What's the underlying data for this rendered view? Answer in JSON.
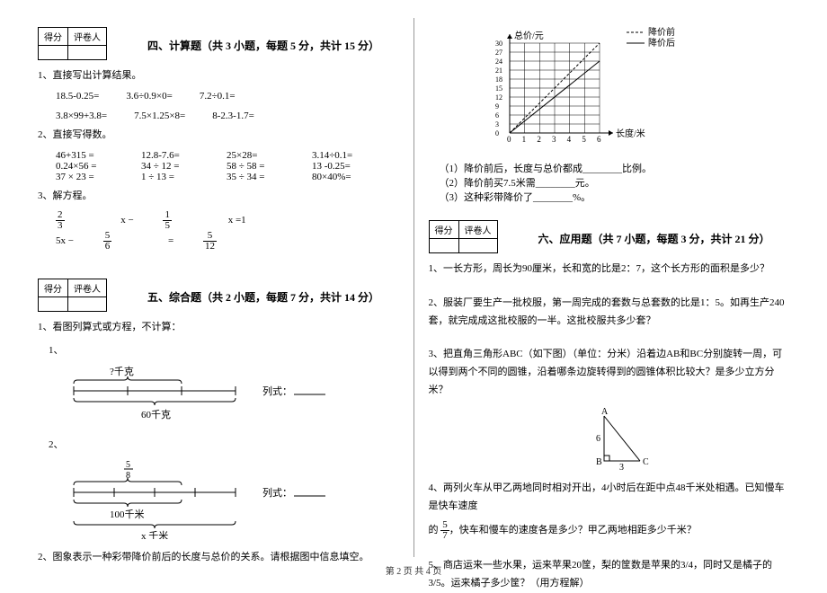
{
  "score_box": {
    "row1": [
      "得分",
      "评卷人"
    ],
    "row2": [
      "",
      ""
    ]
  },
  "section4": {
    "title": "四、计算题（共 3 小题，每题 5 分，共计 15 分）",
    "q1_label": "1、直接写出计算结果。",
    "q1_row1": [
      "18.5-0.25=",
      "3.6÷0.9×0=",
      "7.2÷0.1="
    ],
    "q1_row2": [
      "3.8×99+3.8=",
      "7.5×1.25×8=",
      "8-2.3-1.7="
    ],
    "q2_label": "2、直接写得数。",
    "q2_rows": [
      [
        "46+315 =",
        "12.8-7.6=",
        "25×28=",
        "3.14÷0.1="
      ],
      [
        "0.24×56 =",
        "34 ÷ 12 =",
        "58 ÷ 58 =",
        "13 -0.25="
      ],
      [
        "37 × 23 =",
        "1 ÷ 13 =",
        "35 ÷ 34 =",
        "80×40%="
      ]
    ],
    "q3_label": "3、解方程。",
    "q3_eq1": {
      "a_num": "2",
      "a_den": "3",
      "mid": " x − ",
      "b_num": "1",
      "b_den": "5",
      "tail": " x =1"
    },
    "q3_eq2": {
      "pre": "5x − ",
      "a_num": "5",
      "a_den": "6",
      "mid": " = ",
      "b_num": "5",
      "b_den": "12"
    }
  },
  "section5": {
    "title": "五、综合题（共 2 小题，每题 7 分，共计 14 分）",
    "q1_label": "1、看图列算式或方程，不计算：",
    "sub1": "1、",
    "sub2": "2、",
    "formula_label": "列式：",
    "diagram1": {
      "top_label": "?千克",
      "bottom_label": "60千克",
      "brace_color": "#000"
    },
    "diagram2": {
      "top_frac_num": "5",
      "top_frac_den": "8",
      "mid_label": "100千米",
      "bottom_label": "x 千米"
    },
    "q2_label": "2、图象表示一种彩带降价前后的长度与总价的关系。请根据图中信息填空。"
  },
  "chart": {
    "y_label": "总价/元",
    "x_label": "长度/米",
    "legend": [
      {
        "style": "dash",
        "label": "降价前"
      },
      {
        "style": "solid",
        "label": "降价后"
      }
    ],
    "y_ticks": [
      "0",
      "3",
      "6",
      "9",
      "12",
      "15",
      "18",
      "21",
      "24",
      "27",
      "30"
    ],
    "x_ticks": [
      "0",
      "1",
      "2",
      "3",
      "4",
      "5",
      "6"
    ],
    "grid_color": "#000",
    "line_before": [
      [
        0,
        0
      ],
      [
        6,
        30
      ]
    ],
    "line_after": [
      [
        0,
        0
      ],
      [
        6,
        24
      ]
    ],
    "line_color": "#000"
  },
  "chart_questions": {
    "q1": "（1）降价前后，长度与总价都成________比例。",
    "q2": "（2）降价前买7.5米需________元。",
    "q3": "（3）这种彩带降价了________%。"
  },
  "section6": {
    "title": "六、应用题（共 7 小题，每题 3 分，共计 21 分）",
    "q1": "1、一长方形，周长为90厘米，长和宽的比是2：7，这个长方形的面积是多少？",
    "q2": "2、服装厂要生产一批校服，第一周完成的套数与总套数的比是1：5。如再生产240套，就完成成这批校服的一半。这批校服共多少套？",
    "q3": "3、把直角三角形ABC（如下图）（单位：分米）沿着边AB和BC分别旋转一周，可以得到两个不同的圆锥，沿着哪条边旋转得到的圆锥体积比较大？是多少立方分米？",
    "triangle": {
      "A": "A",
      "B": "B",
      "C": "C",
      "ab_len": "6",
      "bc_len": "3"
    },
    "q4_pre": "4、两列火车从甲乙两地同时相对开出，4小时后在距中点48千米处相遇。已知慢车是快车速度",
    "q4_frac": {
      "num": "5",
      "den": "7"
    },
    "q4_post": "的  ，快车和慢车的速度各是多少？甲乙两地相距多少千米？",
    "q5": "5、商店运来一些水果，运来苹果20筐，梨的筐数是苹果的3/4，同时又是橘子的3/5。运来橘子多少筐？（用方程解）"
  },
  "footer": "第 2 页 共 4 页"
}
